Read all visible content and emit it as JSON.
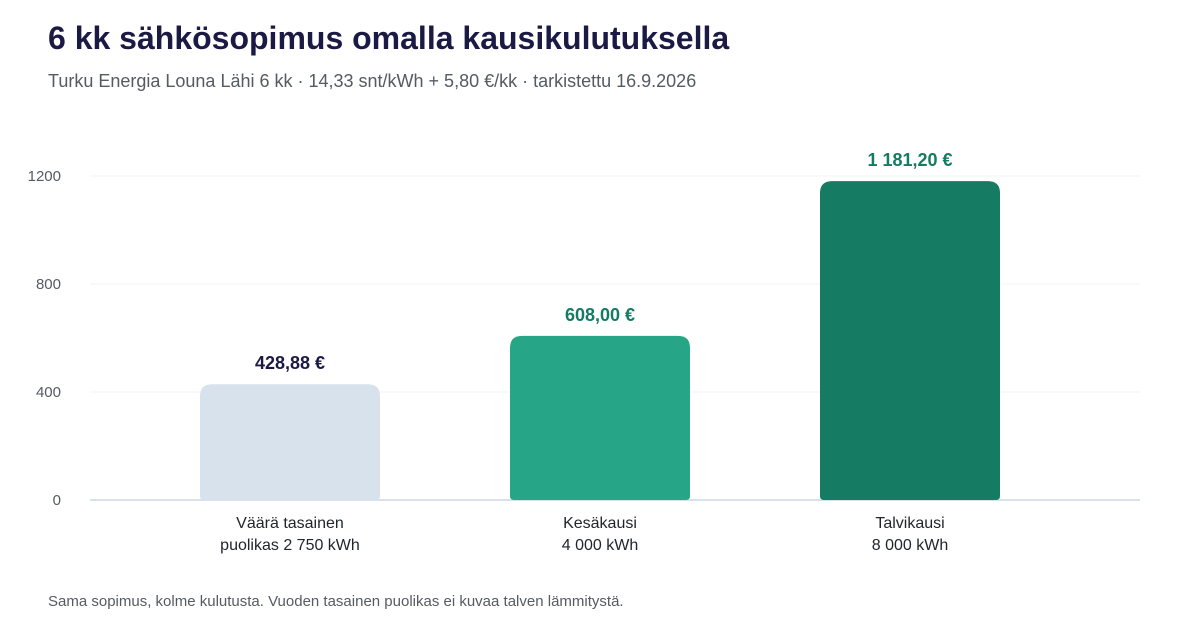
{
  "header": {
    "title": "6 kk sähkösopimus omalla kausikulutuksella",
    "subtitle": "Turku Energia Louna Lähi 6 kk · 14,33 snt/kWh + 5,80 €/kk · tarkistettu 16.9.2026"
  },
  "footnote": "Sama sopimus, kolme kulutusta. Vuoden tasainen puolikas ei kuvaa talven lämmitystä.",
  "chart_data": {
    "type": "bar",
    "title": "6 kk sähkösopimus omalla kausikulutuksella",
    "xlabel": "",
    "ylabel": "",
    "ylim": [
      0,
      1200
    ],
    "yticks": [
      0,
      400,
      800,
      1200
    ],
    "grid": true,
    "categories": [
      [
        "Väärä tasainen",
        "puolikas 2 750 kWh"
      ],
      [
        "Kesäkausi",
        "4 000 kWh"
      ],
      [
        "Talvikausi",
        "8 000 kWh"
      ]
    ],
    "values": [
      428.88,
      608.0,
      1181.2
    ],
    "value_labels": [
      "428,88 €",
      "608,00 €",
      "1 181,20 €"
    ],
    "colors": [
      "#d8e2ec",
      "#27a687",
      "#157b63"
    ],
    "label_colors": [
      "#1b1a44",
      "#157b63",
      "#157b63"
    ]
  }
}
